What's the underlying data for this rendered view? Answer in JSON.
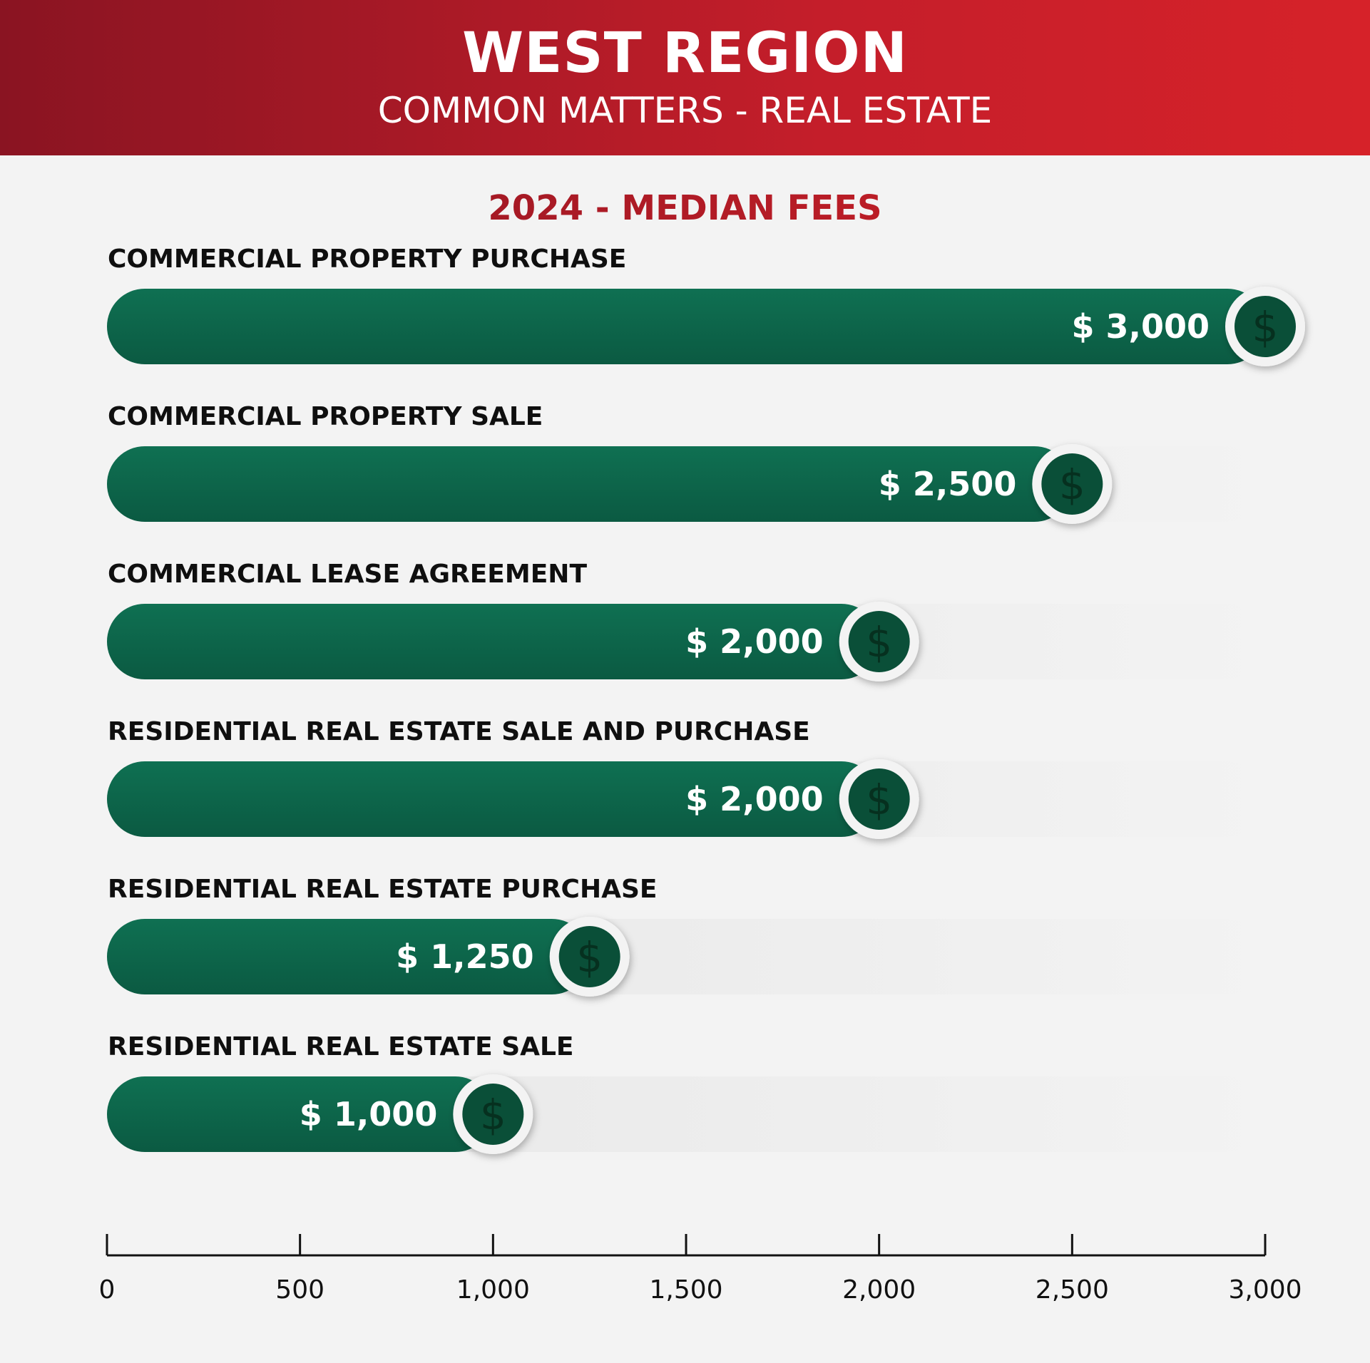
{
  "header": {
    "title": "WEST REGION",
    "subtitle": "COMMON MATTERS - REAL ESTATE"
  },
  "colors": {
    "header_dark": "#8a1422",
    "header_bright": "#d62229",
    "bar_light": "#0f7052",
    "bar_dark": "#0b5a42",
    "icon_fill": "#0a4f38",
    "background": "#f3f3f3"
  },
  "chart_data": {
    "type": "bar",
    "orientation": "horizontal",
    "title": "2024 - MEDIAN FEES",
    "xlabel": "",
    "ylabel": "",
    "categories": [
      "COMMERCIAL PROPERTY PURCHASE",
      "COMMERCIAL PROPERTY SALE",
      "COMMERCIAL LEASE AGREEMENT",
      "RESIDENTIAL REAL ESTATE SALE AND PURCHASE",
      "RESIDENTIAL REAL ESTATE PURCHASE",
      "RESIDENTIAL REAL ESTATE SALE"
    ],
    "values": [
      3000,
      2500,
      2000,
      2000,
      1250,
      1000
    ],
    "value_labels": [
      "$ 3,000",
      "$ 2,500",
      "$ 2,000",
      "$ 2,000",
      "$ 1,250",
      "$ 1,000"
    ],
    "xlim": [
      0,
      3000
    ],
    "xticks": [
      0,
      500,
      1000,
      1500,
      2000,
      2500,
      3000
    ],
    "xtick_labels": [
      "0",
      "500",
      "1,000",
      "1,500",
      "2,000",
      "2,500",
      "3,000"
    ],
    "icon": "dollar-icon",
    "icon_glyph": "$",
    "grid": false,
    "legend": "none"
  }
}
